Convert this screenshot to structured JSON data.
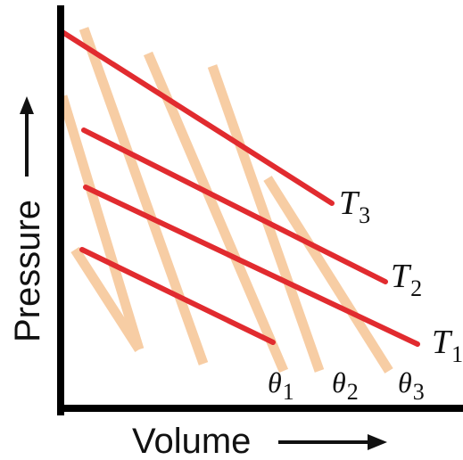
{
  "diagram": {
    "axes": {
      "y_label": "Pressure",
      "x_label": "Volume",
      "arrow_glyph": "→"
    },
    "red_lines": {
      "color": "#e12b2f",
      "labels": [
        {
          "main": "T",
          "sub": "3"
        },
        {
          "main": "T",
          "sub": "2"
        },
        {
          "main": "T",
          "sub": "1"
        }
      ]
    },
    "orange_lines": {
      "color": "#f7cda4",
      "labels": [
        {
          "main": "θ",
          "sub": "1"
        },
        {
          "main": "θ",
          "sub": "2"
        },
        {
          "main": "θ",
          "sub": "3"
        }
      ]
    }
  }
}
